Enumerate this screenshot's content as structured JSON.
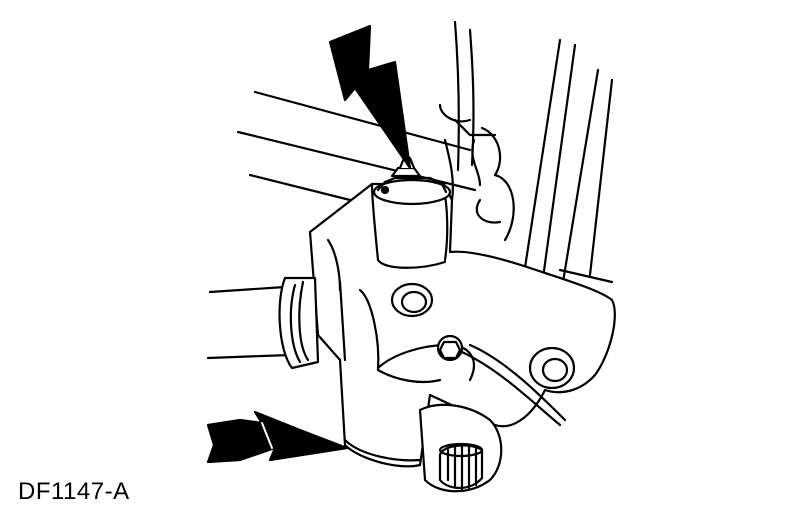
{
  "figure": {
    "id_label": "DF1147-A",
    "callouts": [
      {
        "name": "arrow-top",
        "points_to": "pinch-bolt-nut"
      },
      {
        "name": "arrow-bottom",
        "points_to": "lower-ball-joint"
      }
    ],
    "colors": {
      "line": "#000000",
      "fill": "#ffffff"
    }
  }
}
